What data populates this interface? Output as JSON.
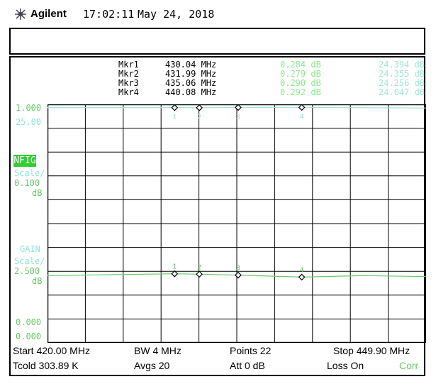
{
  "header": {
    "brand": "Agilent",
    "time": "17:02:11",
    "date": "May 24, 2018"
  },
  "markers": [
    {
      "name": "Mkr1",
      "freq": "430.04 MHz",
      "nfig": "0.284 dB",
      "gain": "24.394 dB",
      "x_mhz": 430.04
    },
    {
      "name": "Mkr2",
      "freq": "431.99 MHz",
      "nfig": "0.279 dB",
      "gain": "24.355 dB",
      "x_mhz": 431.99
    },
    {
      "name": "Mkr3",
      "freq": "435.06 MHz",
      "nfig": "0.290 dB",
      "gain": "24.256 dB",
      "x_mhz": 435.06
    },
    {
      "name": "Mkr4",
      "freq": "440.08 MHz",
      "nfig": "0.292 dB",
      "gain": "24.047 dB",
      "x_mhz": 440.08
    }
  ],
  "scales": {
    "nfig_top": "1.000",
    "gain_top": "25.00",
    "nfig_label": "NFIG",
    "nfig_scale_word": "Scale/",
    "nfig_scale_value": "0.100",
    "nfig_unit": "dB",
    "gain_label": "GAIN",
    "gain_scale_word": "Scale/",
    "gain_scale_value": "2.500",
    "gain_unit": "dB",
    "nfig_bottom": "0.000",
    "gain_bottom": "0.000"
  },
  "marker_labels": [
    "1",
    "2",
    "3",
    "4"
  ],
  "status": {
    "start": "Start 420.00 MHz",
    "bw": "BW 4 MHz",
    "points": "Points 22",
    "stop": "Stop 449.90 MHz",
    "tcold": "Tcold 303.89 K",
    "avgs": "Avgs 20",
    "att": "Att 0 dB",
    "loss": "Loss On",
    "corr": "Corr"
  },
  "chart_data": {
    "type": "line",
    "x_range_mhz": [
      420.0,
      449.9
    ],
    "series": [
      {
        "name": "NFIG",
        "color": "#9ee6d8",
        "x": [
          420.0,
          430.04,
          431.99,
          435.06,
          440.08,
          449.9
        ],
        "values": [
          0.284,
          0.284,
          0.279,
          0.29,
          0.292,
          0.27
        ]
      },
      {
        "name": "GAIN",
        "color": "#66cc66",
        "x": [
          420.0,
          425.0,
          430.04,
          431.99,
          435.06,
          440.08,
          445.0,
          449.9
        ],
        "values": [
          24.2,
          24.3,
          24.394,
          24.355,
          24.256,
          24.047,
          24.2,
          24.1
        ]
      }
    ],
    "colors": {
      "grid": "#000000",
      "nfig": "#9ee6d8",
      "gain": "#66cc66"
    }
  }
}
